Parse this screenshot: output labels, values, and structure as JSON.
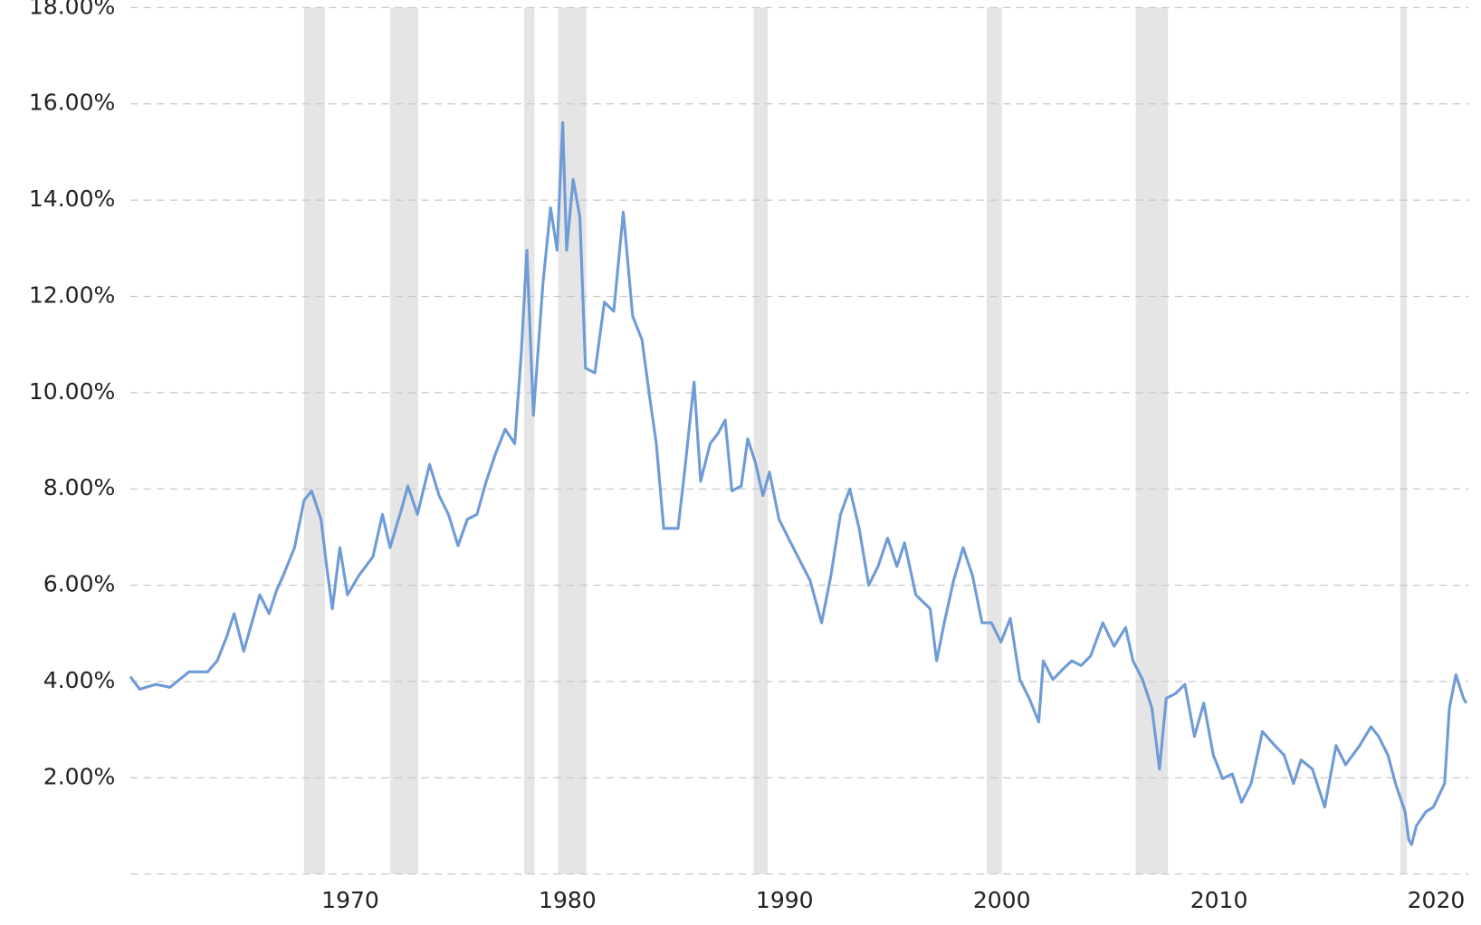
{
  "chart_data": {
    "type": "line",
    "x": [
      1959.87,
      1960.3,
      1961.04,
      1961.7,
      1962.57,
      1963.43,
      1963.87,
      1964.3,
      1964.65,
      1965.09,
      1965.52,
      1965.83,
      1966.26,
      1966.61,
      1966.91,
      1967.43,
      1967.87,
      1968.22,
      1968.65,
      1968.91,
      1969.17,
      1969.52,
      1969.87,
      1970.39,
      1971.04,
      1971.48,
      1971.83,
      1972.35,
      1972.65,
      1973.09,
      1973.65,
      1974.09,
      1974.52,
      1974.96,
      1975.39,
      1975.83,
      1976.26,
      1976.7,
      1977.13,
      1977.57,
      1977.87,
      1978.13,
      1978.43,
      1978.87,
      1979.22,
      1979.52,
      1979.78,
      1979.96,
      1980.26,
      1980.57,
      1980.83,
      1981.26,
      1981.7,
      1982.13,
      1982.57,
      1983.0,
      1983.43,
      1983.78,
      1984.09,
      1984.43,
      1984.74,
      1985.09,
      1985.39,
      1985.83,
      1986.13,
      1986.57,
      1986.91,
      1987.26,
      1987.57,
      1988.0,
      1988.3,
      1988.65,
      1989.0,
      1989.3,
      1989.74,
      1990.17,
      1990.61,
      1991.17,
      1991.7,
      1992.13,
      1992.57,
      1993.0,
      1993.43,
      1993.87,
      1994.3,
      1994.74,
      1995.17,
      1995.52,
      1996.04,
      1996.7,
      1997.0,
      1997.35,
      1997.78,
      1998.22,
      1998.65,
      1999.09,
      1999.52,
      1999.96,
      2000.39,
      2000.83,
      2001.26,
      2001.7,
      2001.91,
      2002.35,
      2002.78,
      2003.22,
      2003.65,
      2004.09,
      2004.65,
      2005.17,
      2005.7,
      2006.04,
      2006.48,
      2006.91,
      2007.26,
      2007.57,
      2008.0,
      2008.43,
      2008.87,
      2009.3,
      2009.74,
      2010.17,
      2010.61,
      2011.04,
      2011.48,
      2012.0,
      2012.57,
      2013.0,
      2013.43,
      2013.78,
      2014.3,
      2014.87,
      2015.39,
      2015.83,
      2016.48,
      2017.0,
      2017.35,
      2017.78,
      2018.13,
      2018.57,
      2018.74,
      2018.87,
      2019.09,
      2019.52,
      2019.87,
      2020.39,
      2020.61,
      2020.91,
      2021.26,
      2021.39
    ],
    "series": [
      {
        "color": "#6f9bd6",
        "values": [
          4.1,
          3.84,
          3.94,
          3.88,
          4.2,
          4.2,
          4.43,
          4.92,
          5.41,
          4.63,
          5.31,
          5.8,
          5.41,
          5.9,
          6.2,
          6.78,
          7.76,
          7.96,
          7.37,
          6.39,
          5.51,
          6.78,
          5.8,
          6.2,
          6.59,
          7.47,
          6.78,
          7.57,
          8.06,
          7.47,
          8.51,
          7.86,
          7.47,
          6.82,
          7.37,
          7.47,
          8.16,
          8.75,
          9.24,
          8.94,
          10.8,
          12.96,
          9.53,
          12.27,
          13.84,
          12.96,
          15.61,
          12.96,
          14.43,
          13.65,
          10.51,
          10.41,
          11.88,
          11.69,
          13.75,
          11.59,
          11.1,
          9.92,
          8.94,
          7.18,
          7.18,
          7.18,
          8.35,
          10.22,
          8.16,
          8.94,
          9.14,
          9.43,
          7.96,
          8.06,
          9.04,
          8.55,
          7.86,
          8.35,
          7.37,
          6.98,
          6.59,
          6.1,
          5.22,
          6.2,
          7.47,
          8.0,
          7.18,
          6.0,
          6.39,
          6.98,
          6.39,
          6.88,
          5.8,
          5.51,
          4.43,
          5.22,
          6.1,
          6.78,
          6.2,
          5.22,
          5.22,
          4.82,
          5.31,
          4.04,
          3.65,
          3.16,
          4.43,
          4.04,
          4.24,
          4.43,
          4.33,
          4.53,
          5.22,
          4.73,
          5.12,
          4.43,
          4.04,
          3.45,
          2.18,
          3.65,
          3.75,
          3.94,
          2.86,
          3.55,
          2.47,
          1.98,
          2.08,
          1.49,
          1.88,
          2.96,
          2.67,
          2.47,
          1.88,
          2.37,
          2.18,
          1.39,
          2.67,
          2.27,
          2.67,
          3.06,
          2.86,
          2.47,
          1.88,
          1.29,
          0.71,
          0.61,
          1.0,
          1.29,
          1.39,
          1.88,
          3.45,
          4.14,
          3.65,
          3.55
        ]
      }
    ],
    "recessions": [
      [
        1967.87,
        1968.83
      ],
      [
        1971.83,
        1973.13
      ],
      [
        1978.0,
        1978.48
      ],
      [
        1979.57,
        1980.87
      ],
      [
        1988.57,
        1989.22
      ],
      [
        1999.3,
        2000.0
      ],
      [
        2006.17,
        2007.65
      ],
      [
        2018.35,
        2018.65
      ]
    ],
    "recession_color": "#e5e5e5",
    "xlim": [
      1959.87,
      2021.5
    ],
    "xticks": [
      1970,
      1980,
      1990,
      2000,
      2010,
      2020
    ],
    "ylim": [
      0,
      18
    ],
    "yticks": [
      {
        "value": 2,
        "label": "2.00%"
      },
      {
        "value": 4,
        "label": "4.00%"
      },
      {
        "value": 6,
        "label": "6.00%"
      },
      {
        "value": 8,
        "label": "8.00%"
      },
      {
        "value": 10,
        "label": "10.00%"
      },
      {
        "value": 12,
        "label": "12.00%"
      },
      {
        "value": 14,
        "label": "14.00%"
      },
      {
        "value": 16,
        "label": "16.00%"
      },
      {
        "value": 18,
        "label": "18.00%"
      }
    ],
    "grid": true
  }
}
